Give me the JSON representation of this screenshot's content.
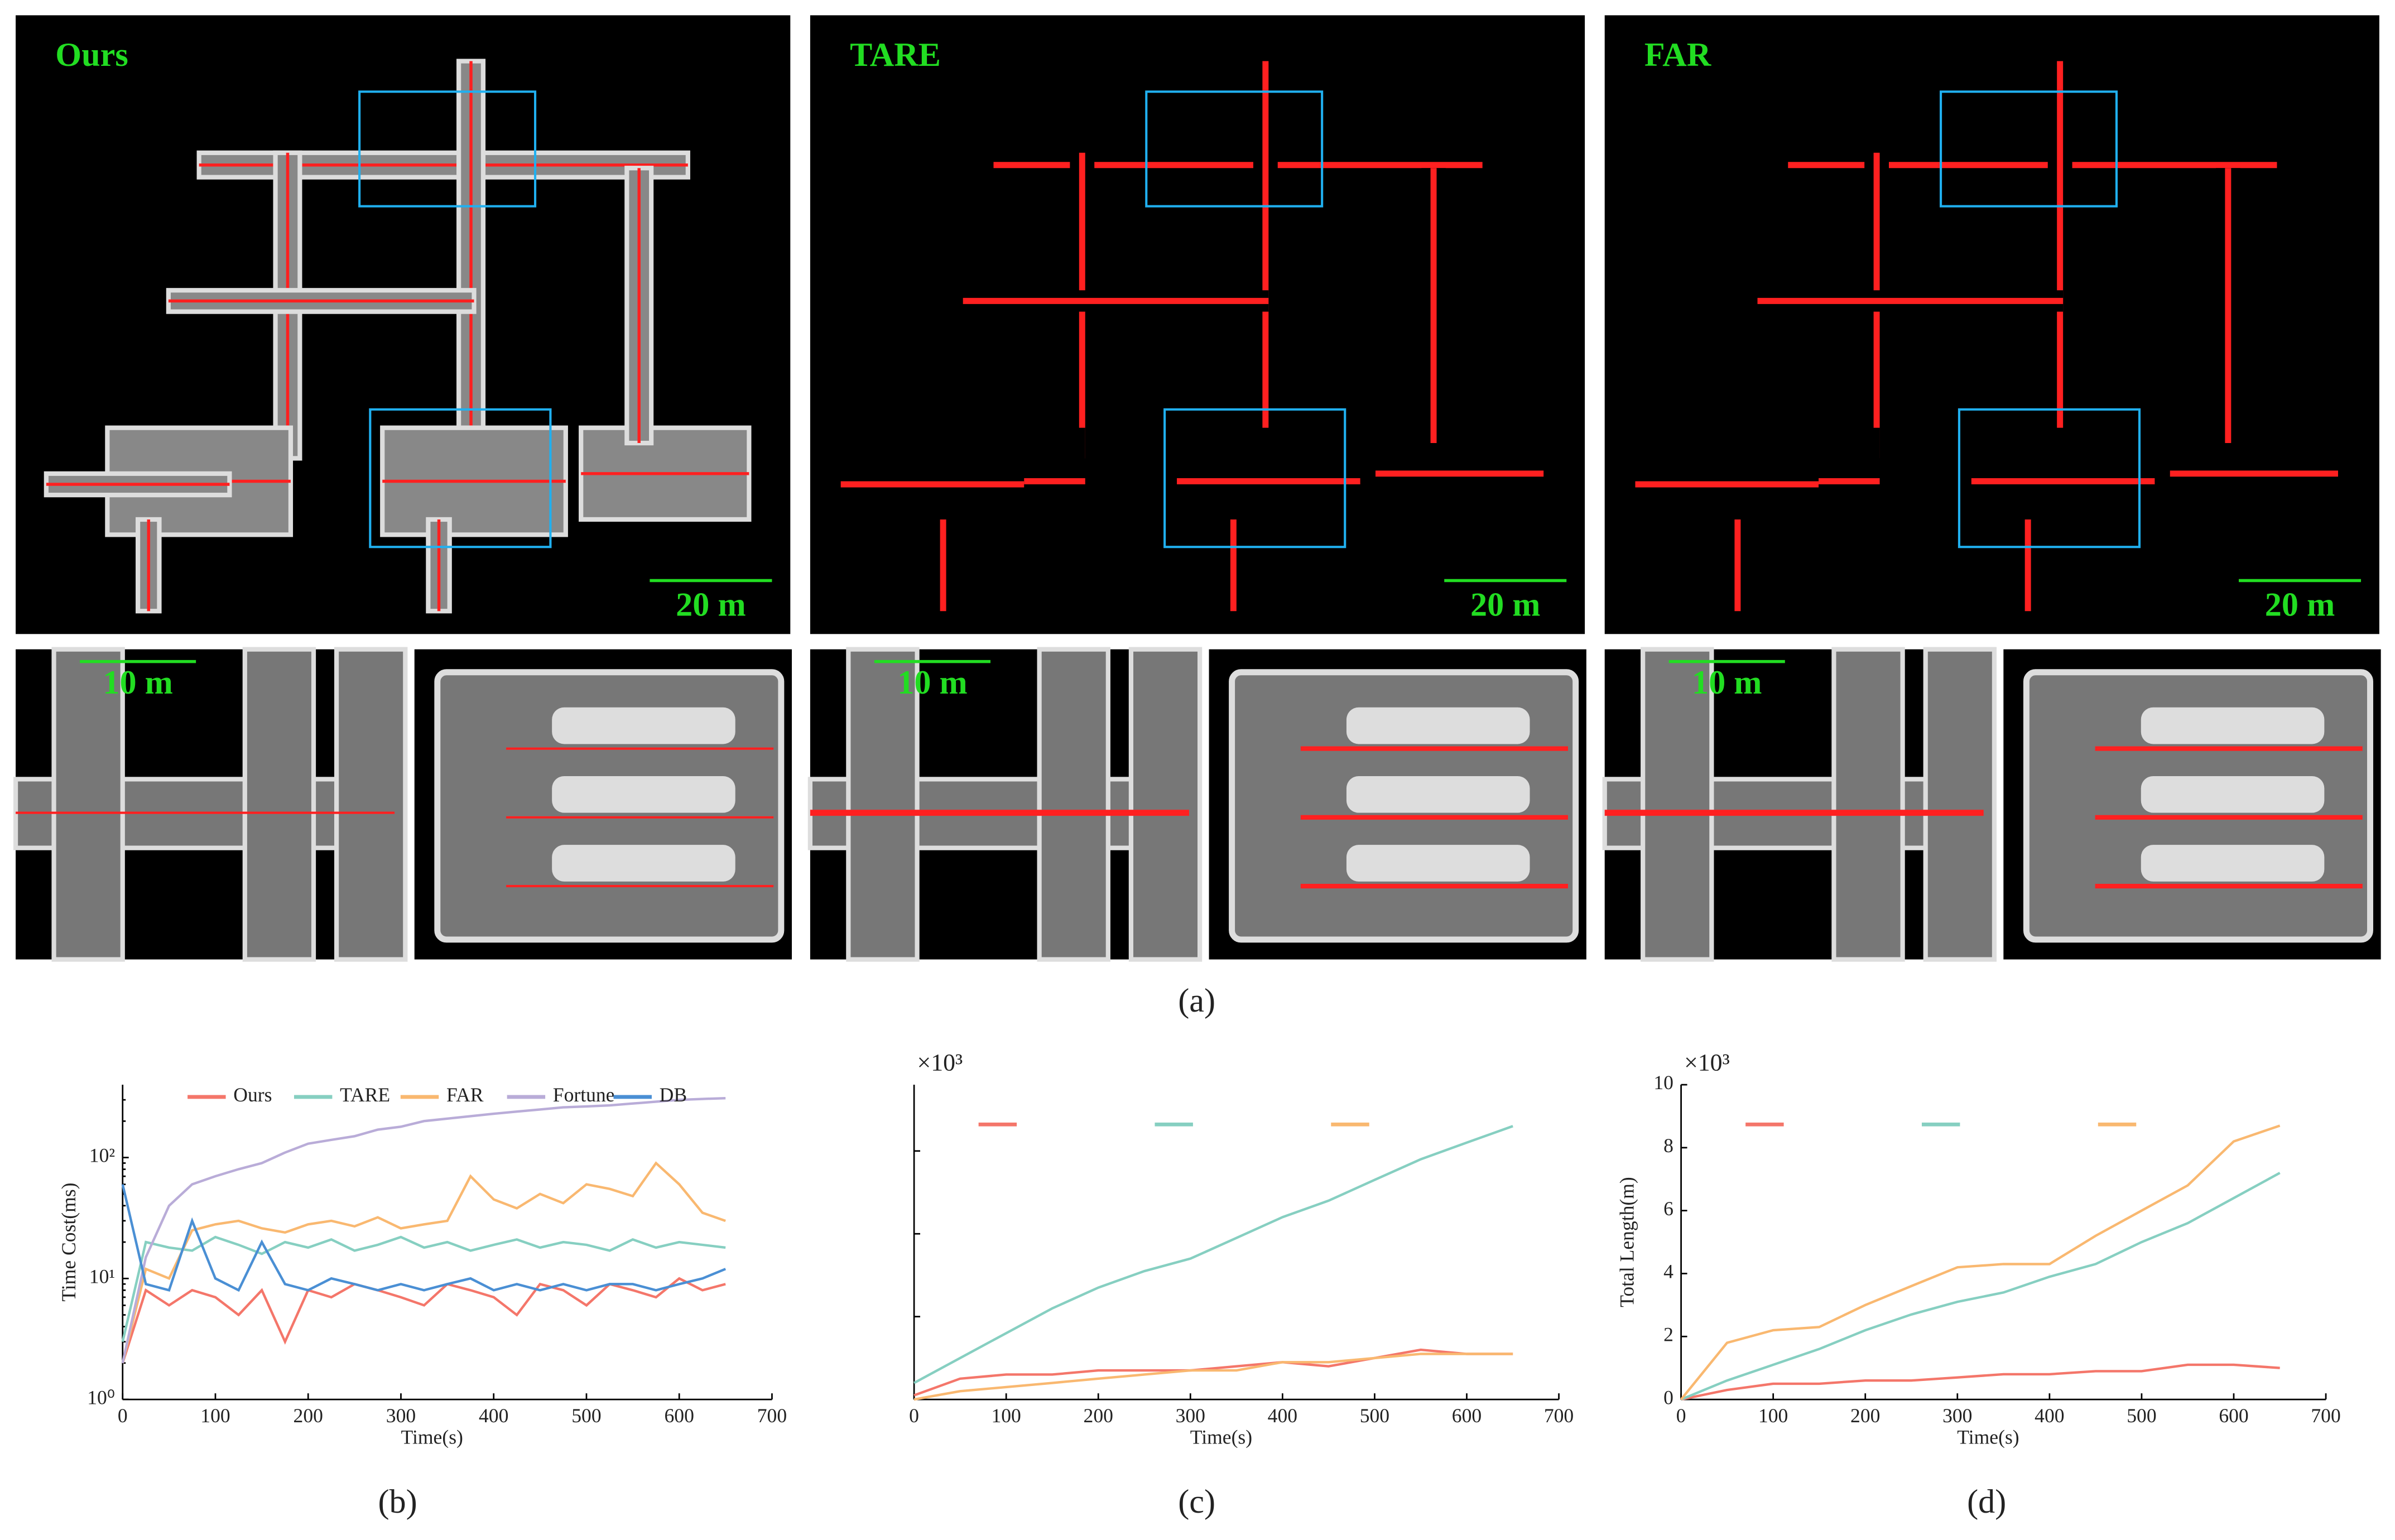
{
  "figure": {
    "methods": [
      "Ours",
      "TARE",
      "FAR"
    ],
    "scale_large": "20 m",
    "scale_small": "10 m",
    "panel_labels": [
      "(a)",
      "(b)",
      "(c)",
      "(d)"
    ]
  },
  "chart_data": [
    {
      "type": "line",
      "log_y": true,
      "ylabel": "Time Cost(ms)",
      "xlabel": "Time(s)",
      "legend": "top",
      "x": [
        0,
        25,
        50,
        75,
        100,
        125,
        150,
        175,
        200,
        225,
        250,
        275,
        300,
        325,
        350,
        375,
        400,
        425,
        450,
        475,
        500,
        525,
        550,
        575,
        600,
        625,
        650
      ],
      "xlim": [
        0,
        700
      ],
      "xticks": [
        0,
        100,
        200,
        300,
        400,
        500,
        600,
        700
      ],
      "ylim": [
        1,
        400
      ],
      "yticks": [
        {
          "value": 1,
          "label": "10⁰"
        },
        {
          "value": 10,
          "label": "10¹"
        },
        {
          "value": 100,
          "label": "10²"
        }
      ],
      "series": [
        {
          "name": "Ours",
          "color": "#f4766a",
          "values": [
            2,
            8,
            6,
            8,
            7,
            5,
            8,
            3,
            8,
            7,
            9,
            8,
            7,
            6,
            9,
            8,
            7,
            5,
            9,
            8,
            6,
            9,
            8,
            7,
            10,
            8,
            9
          ]
        },
        {
          "name": "TARE",
          "color": "#86cfc1",
          "values": [
            3,
            20,
            18,
            17,
            22,
            19,
            16,
            20,
            18,
            21,
            17,
            19,
            22,
            18,
            20,
            17,
            19,
            21,
            18,
            20,
            19,
            17,
            21,
            18,
            20,
            19,
            18
          ]
        },
        {
          "name": "FAR",
          "color": "#f9b870",
          "values": [
            2,
            12,
            10,
            25,
            28,
            30,
            26,
            24,
            28,
            30,
            27,
            32,
            26,
            28,
            30,
            70,
            45,
            38,
            50,
            42,
            60,
            55,
            48,
            90,
            60,
            35,
            30
          ]
        },
        {
          "name": "Fortune",
          "color": "#b9acd8",
          "values": [
            2,
            15,
            40,
            60,
            70,
            80,
            90,
            110,
            130,
            140,
            150,
            170,
            180,
            200,
            210,
            220,
            230,
            240,
            250,
            260,
            265,
            270,
            280,
            290,
            300,
            305,
            310
          ]
        },
        {
          "name": "DB",
          "color": "#4a8fd4",
          "values": [
            60,
            9,
            8,
            30,
            10,
            8,
            20,
            9,
            8,
            10,
            9,
            8,
            9,
            8,
            9,
            10,
            8,
            9,
            8,
            9,
            8,
            9,
            9,
            8,
            9,
            10,
            12
          ]
        }
      ]
    },
    {
      "type": "line",
      "xlabel": "Time(s)",
      "yscale_label": "×10³",
      "show_ytick_labels": false,
      "x": [
        0,
        50,
        100,
        150,
        200,
        250,
        300,
        350,
        400,
        450,
        500,
        550,
        600,
        650
      ],
      "xlim": [
        0,
        700
      ],
      "xticks": [
        0,
        100,
        200,
        300,
        400,
        500,
        600,
        700
      ],
      "ylim": [
        0,
        3.8
      ],
      "yticks": [
        0,
        1,
        2,
        3
      ],
      "series": [
        {
          "color": "#f4766a",
          "values": [
            0.05,
            0.25,
            0.3,
            0.3,
            0.35,
            0.35,
            0.35,
            0.4,
            0.45,
            0.4,
            0.5,
            0.6,
            0.55,
            0.55
          ]
        },
        {
          "color": "#86cfc1",
          "values": [
            0.2,
            0.5,
            0.8,
            1.1,
            1.35,
            1.55,
            1.7,
            1.95,
            2.2,
            2.4,
            2.65,
            2.9,
            3.1,
            3.3
          ]
        },
        {
          "color": "#f9b870",
          "values": [
            0,
            0.1,
            0.15,
            0.2,
            0.25,
            0.3,
            0.35,
            0.35,
            0.45,
            0.45,
            0.5,
            0.55,
            0.55,
            0.55
          ]
        }
      ]
    },
    {
      "type": "line",
      "xlabel": "Time(s)",
      "ylabel": "Total Length(m)",
      "yscale_label": "×10³",
      "x": [
        0,
        50,
        100,
        150,
        200,
        250,
        300,
        350,
        400,
        450,
        500,
        550,
        600,
        650
      ],
      "xlim": [
        0,
        700
      ],
      "xticks": [
        0,
        100,
        200,
        300,
        400,
        500,
        600,
        700
      ],
      "ylim": [
        0,
        10
      ],
      "yticks": [
        0,
        2,
        4,
        6,
        8,
        10
      ],
      "series": [
        {
          "color": "#f4766a",
          "values": [
            0,
            0.3,
            0.5,
            0.5,
            0.6,
            0.6,
            0.7,
            0.8,
            0.8,
            0.9,
            0.9,
            1.1,
            1.1,
            1.0
          ]
        },
        {
          "color": "#86cfc1",
          "values": [
            0,
            0.6,
            1.1,
            1.6,
            2.2,
            2.7,
            3.1,
            3.4,
            3.9,
            4.3,
            5.0,
            5.6,
            6.4,
            7.2
          ]
        },
        {
          "color": "#f9b870",
          "values": [
            0,
            1.8,
            2.2,
            2.3,
            3.0,
            3.6,
            4.2,
            4.3,
            4.3,
            5.2,
            6.0,
            6.8,
            8.2,
            8.7
          ]
        }
      ]
    }
  ]
}
